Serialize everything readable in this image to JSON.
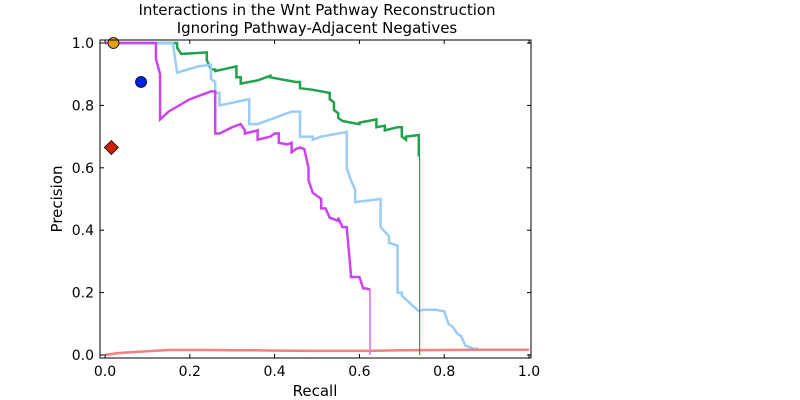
{
  "chart_data": {
    "type": "line",
    "title": "Interactions in the Wnt Pathway Reconstruction",
    "subtitle": "Ignoring Pathway-Adjacent Negatives",
    "xlabel": "Recall",
    "ylabel": "Precision",
    "xlim": [
      0.0,
      1.0
    ],
    "ylim": [
      0.0,
      1.0
    ],
    "xticks": [
      "0.0",
      "0.2",
      "0.4",
      "0.6",
      "0.8",
      "1.0"
    ],
    "yticks": [
      "0.0",
      "0.2",
      "0.4",
      "0.6",
      "0.8",
      "1.0"
    ],
    "grid": false,
    "series": [
      {
        "color": "#22a04b",
        "x": [
          0.0,
          0.17,
          0.17,
          0.18,
          0.24,
          0.24,
          0.25,
          0.26,
          0.26,
          0.31,
          0.31,
          0.32,
          0.32,
          0.36,
          0.39,
          0.39,
          0.45,
          0.46,
          0.46,
          0.49,
          0.53,
          0.53,
          0.54,
          0.54,
          0.55,
          0.55,
          0.56,
          0.58,
          0.6,
          0.6,
          0.64,
          0.64,
          0.66,
          0.66,
          0.69,
          0.7,
          0.7,
          0.71,
          0.71,
          0.74,
          0.74,
          0.742
        ],
        "y": [
          1.0,
          1.0,
          0.985,
          0.965,
          0.97,
          0.945,
          0.915,
          0.915,
          0.91,
          0.925,
          0.89,
          0.89,
          0.87,
          0.88,
          0.895,
          0.89,
          0.875,
          0.875,
          0.855,
          0.85,
          0.84,
          0.82,
          0.81,
          0.785,
          0.775,
          0.76,
          0.75,
          0.745,
          0.74,
          0.745,
          0.755,
          0.73,
          0.735,
          0.72,
          0.73,
          0.73,
          0.7,
          0.69,
          0.7,
          0.705,
          0.64,
          0.64
        ]
      },
      {
        "color": "#99ccf8",
        "x": [
          0.0,
          0.16,
          0.17,
          0.22,
          0.25,
          0.25,
          0.26,
          0.26,
          0.27,
          0.27,
          0.34,
          0.34,
          0.36,
          0.44,
          0.46,
          0.46,
          0.49,
          0.49,
          0.51,
          0.57,
          0.57,
          0.58,
          0.59,
          0.59,
          0.65,
          0.65,
          0.67,
          0.67,
          0.69,
          0.69,
          0.7,
          0.7,
          0.74,
          0.75,
          0.78,
          0.8,
          0.81,
          0.82,
          0.83,
          0.84,
          0.85,
          0.86,
          0.87,
          0.88
        ],
        "y": [
          1.0,
          1.0,
          0.905,
          0.925,
          0.93,
          0.885,
          0.875,
          0.84,
          0.84,
          0.8,
          0.82,
          0.74,
          0.74,
          0.78,
          0.78,
          0.7,
          0.7,
          0.69,
          0.7,
          0.715,
          0.6,
          0.56,
          0.53,
          0.49,
          0.5,
          0.41,
          0.38,
          0.36,
          0.35,
          0.2,
          0.2,
          0.19,
          0.14,
          0.145,
          0.145,
          0.14,
          0.1,
          0.09,
          0.07,
          0.06,
          0.03,
          0.025,
          0.02,
          0.02
        ]
      },
      {
        "color": "#cc44f0",
        "x": [
          0.0,
          0.12,
          0.12,
          0.13,
          0.13,
          0.15,
          0.2,
          0.25,
          0.26,
          0.26,
          0.27,
          0.3,
          0.32,
          0.33,
          0.33,
          0.36,
          0.36,
          0.39,
          0.4,
          0.41,
          0.41,
          0.43,
          0.44,
          0.44,
          0.45,
          0.46,
          0.47,
          0.48,
          0.48,
          0.49,
          0.5,
          0.51,
          0.51,
          0.52,
          0.53,
          0.55,
          0.55,
          0.56,
          0.57,
          0.58,
          0.58,
          0.6,
          0.61,
          0.61,
          0.625,
          0.625
        ],
        "y": [
          1.0,
          1.0,
          0.95,
          0.9,
          0.755,
          0.78,
          0.82,
          0.845,
          0.845,
          0.71,
          0.71,
          0.73,
          0.74,
          0.72,
          0.71,
          0.72,
          0.69,
          0.7,
          0.71,
          0.71,
          0.68,
          0.675,
          0.68,
          0.65,
          0.66,
          0.665,
          0.66,
          0.6,
          0.56,
          0.52,
          0.51,
          0.5,
          0.47,
          0.47,
          0.44,
          0.43,
          0.44,
          0.41,
          0.41,
          0.26,
          0.25,
          0.25,
          0.21,
          0.215,
          0.21,
          0.0
        ]
      },
      {
        "color": "#f28080",
        "x": [
          0.0,
          0.03,
          0.06,
          0.1,
          0.15,
          0.2,
          0.25,
          0.3,
          0.35,
          0.4,
          0.5,
          0.6,
          0.7,
          0.8,
          0.9,
          1.0
        ],
        "y": [
          0.0,
          0.006,
          0.009,
          0.012,
          0.016,
          0.016,
          0.016,
          0.015,
          0.015,
          0.014,
          0.013,
          0.013,
          0.015,
          0.016,
          0.017,
          0.017
        ]
      }
    ],
    "markers": [
      {
        "shape": "circle",
        "color": "#e0a010",
        "x": 0.02,
        "y": 1.0
      },
      {
        "shape": "circle",
        "color": "#0022e0",
        "x": 0.085,
        "y": 0.875
      },
      {
        "shape": "diamond",
        "color": "#cc2200",
        "x": 0.015,
        "y": 0.665
      }
    ]
  }
}
